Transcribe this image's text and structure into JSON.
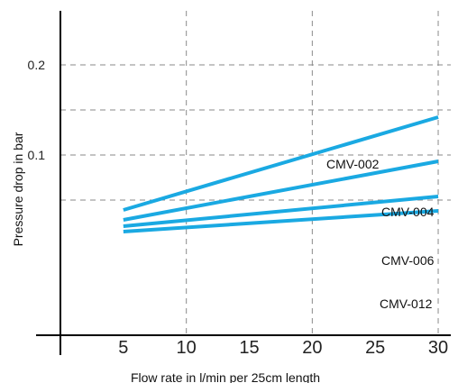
{
  "chart_data": {
    "type": "line",
    "xlabel": "Flow rate in  l/min per 25cm length",
    "ylabel": "Pressure drop in bar",
    "xlim": [
      0,
      31
    ],
    "ylim": [
      -0.1,
      0.26
    ],
    "x_ticks": [
      5,
      10,
      15,
      20,
      25,
      30
    ],
    "x_tick_labels": [
      "5",
      "10",
      "15",
      "20",
      "25",
      "30"
    ],
    "y_ticks": [
      0.1,
      0.2
    ],
    "y_tick_labels": [
      "0.1",
      "0.2"
    ],
    "x_gridlines": [
      10,
      20,
      30
    ],
    "y_gridlines": [
      0.05,
      0.1,
      0.15,
      0.2
    ],
    "grid": "dashed",
    "line_color": "#1aa9e2",
    "series": [
      {
        "name": "CMV-002",
        "x": [
          5,
          30
        ],
        "y": [
          0.039,
          0.142
        ]
      },
      {
        "name": "CMV-004",
        "x": [
          5,
          30
        ],
        "y": [
          0.028,
          0.093
        ]
      },
      {
        "name": "CMV-006",
        "x": [
          5,
          30
        ],
        "y": [
          0.021,
          0.054
        ]
      },
      {
        "name": "CMV-012",
        "x": [
          5,
          30
        ],
        "y": [
          0.015,
          0.038
        ]
      }
    ]
  }
}
